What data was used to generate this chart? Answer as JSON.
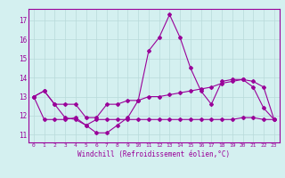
{
  "x": [
    0,
    1,
    2,
    3,
    4,
    5,
    6,
    7,
    8,
    9,
    10,
    11,
    12,
    13,
    14,
    15,
    16,
    17,
    18,
    19,
    20,
    21,
    22,
    23
  ],
  "line1": [
    13.0,
    13.3,
    12.6,
    11.9,
    11.8,
    11.5,
    11.1,
    11.1,
    11.5,
    11.9,
    12.8,
    15.4,
    16.1,
    17.3,
    16.1,
    14.5,
    13.3,
    12.6,
    13.8,
    13.9,
    13.9,
    13.5,
    12.4,
    11.8
  ],
  "line2": [
    13.0,
    13.3,
    12.6,
    12.6,
    12.6,
    11.9,
    11.9,
    12.6,
    12.6,
    12.8,
    12.8,
    13.0,
    13.0,
    13.1,
    13.2,
    13.3,
    13.4,
    13.5,
    13.7,
    13.8,
    13.9,
    13.8,
    13.5,
    11.8
  ],
  "line3": [
    13.0,
    11.8,
    11.8,
    11.8,
    11.9,
    11.5,
    11.8,
    11.8,
    11.8,
    11.8,
    11.8,
    11.8,
    11.8,
    11.8,
    11.8,
    11.8,
    11.8,
    11.8,
    11.8,
    11.8,
    11.9,
    11.9,
    11.8,
    11.8
  ],
  "line_color": "#990099",
  "bg_color": "#d4f0f0",
  "grid_color": "#b8dada",
  "xlabel": "Windchill (Refroidissement éolien,°C)",
  "yticks": [
    11,
    12,
    13,
    14,
    15,
    16,
    17
  ],
  "xticks": [
    0,
    1,
    2,
    3,
    4,
    5,
    6,
    7,
    8,
    9,
    10,
    11,
    12,
    13,
    14,
    15,
    16,
    17,
    18,
    19,
    20,
    21,
    22,
    23
  ],
  "ylim": [
    10.6,
    17.6
  ],
  "xlim": [
    -0.5,
    23.5
  ]
}
